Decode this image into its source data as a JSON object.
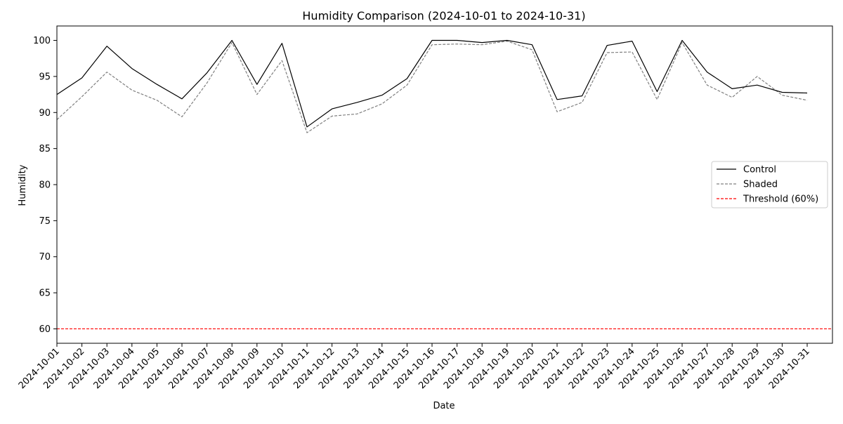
{
  "chart_data": {
    "type": "line",
    "title": "Humidity Comparison (2024-10-01 to 2024-10-31)",
    "xlabel": "Date",
    "ylabel": "Humidity",
    "ylim": [
      58,
      102
    ],
    "yticks": [
      60,
      65,
      70,
      75,
      80,
      85,
      90,
      95,
      100
    ],
    "grid": false,
    "legend_position": "center-right",
    "x": [
      "2024-10-01",
      "2024-10-02",
      "2024-10-03",
      "2024-10-04",
      "2024-10-05",
      "2024-10-06",
      "2024-10-07",
      "2024-10-08",
      "2024-10-09",
      "2024-10-10",
      "2024-10-11",
      "2024-10-12",
      "2024-10-13",
      "2024-10-14",
      "2024-10-15",
      "2024-10-16",
      "2024-10-17",
      "2024-10-18",
      "2024-10-19",
      "2024-10-20",
      "2024-10-21",
      "2024-10-22",
      "2024-10-23",
      "2024-10-24",
      "2024-10-25",
      "2024-10-26",
      "2024-10-27",
      "2024-10-28",
      "2024-10-29",
      "2024-10-30",
      "2024-10-31"
    ],
    "series": [
      {
        "name": "Control",
        "color": "#000000",
        "style": "solid",
        "values": [
          92.5,
          94.8,
          99.2,
          96.1,
          93.9,
          91.9,
          95.5,
          100.0,
          93.9,
          99.6,
          88.0,
          90.5,
          91.4,
          92.4,
          94.7,
          100.0,
          100.0,
          99.7,
          100.0,
          99.4,
          91.8,
          92.3,
          99.3,
          99.9,
          92.9,
          100.0,
          95.6,
          93.3,
          93.8,
          92.8,
          92.7
        ]
      },
      {
        "name": "Shaded",
        "color": "#808080",
        "style": "dashed",
        "values": [
          89.0,
          92.2,
          95.6,
          93.1,
          91.7,
          89.4,
          94.1,
          99.7,
          92.5,
          97.2,
          87.2,
          89.5,
          89.8,
          91.2,
          93.8,
          99.4,
          99.5,
          99.4,
          99.9,
          98.7,
          90.1,
          91.4,
          98.3,
          98.4,
          91.8,
          99.7,
          93.8,
          92.1,
          95.0,
          92.4,
          91.7
        ]
      }
    ],
    "threshold": {
      "name": "Threshold (60%)",
      "value": 60,
      "color": "#ff0000",
      "style": "dashed"
    }
  }
}
